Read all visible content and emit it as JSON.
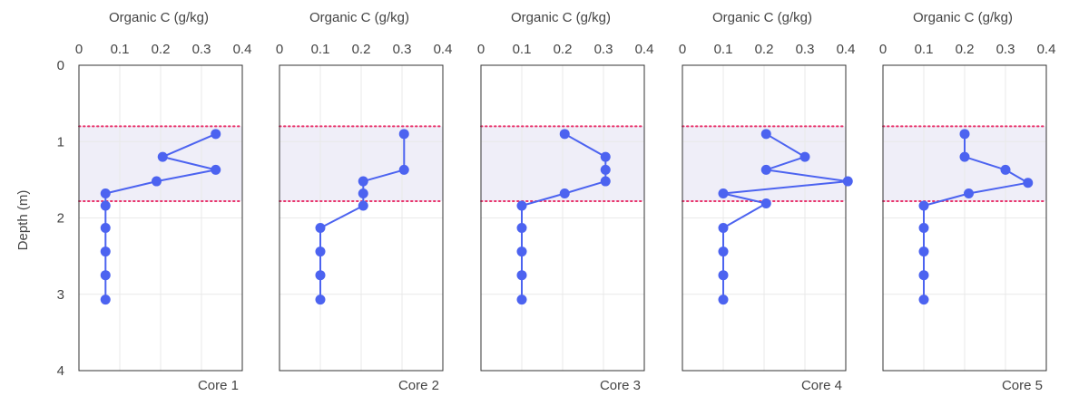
{
  "chart_data": {
    "type": "line",
    "orientation": "profile (x = value, y = depth, depth increases downward)",
    "xlabel": "Organic C (g/kg)",
    "ylabel": "Depth (m)",
    "xlim": [
      0,
      0.4
    ],
    "ylim": [
      0,
      4
    ],
    "x_ticks": [
      "0",
      "0.1",
      "0.2",
      "0.3",
      "0.4"
    ],
    "y_ticks": [
      "0",
      "1",
      "2",
      "3",
      "4"
    ],
    "grid": true,
    "shaded_band": {
      "y_from": 0.8,
      "y_to": 1.78,
      "color": "#efeef8",
      "line_color": "#e8336b",
      "line_style": "dotted"
    },
    "series_color": "#4c63f0",
    "panels": [
      {
        "label": "Core 1",
        "depth": [
          0.9,
          1.2,
          1.37,
          1.52,
          1.68,
          1.84,
          2.13,
          2.44,
          2.75,
          3.07
        ],
        "organic_c": [
          0.335,
          0.205,
          0.335,
          0.19,
          0.065,
          0.065,
          0.065,
          0.065,
          0.065,
          0.065
        ]
      },
      {
        "label": "Core 2",
        "depth": [
          0.9,
          1.37,
          1.52,
          1.68,
          1.84,
          2.13,
          2.44,
          2.75,
          3.07
        ],
        "organic_c": [
          0.305,
          0.305,
          0.205,
          0.205,
          0.205,
          0.1,
          0.1,
          0.1,
          0.1
        ]
      },
      {
        "label": "Core 3",
        "depth": [
          0.9,
          1.2,
          1.37,
          1.52,
          1.68,
          1.84,
          2.13,
          2.44,
          2.75,
          3.07
        ],
        "organic_c": [
          0.205,
          0.305,
          0.305,
          0.305,
          0.205,
          0.1,
          0.1,
          0.1,
          0.1,
          0.1
        ]
      },
      {
        "label": "Core 4",
        "depth": [
          0.9,
          1.2,
          1.37,
          1.52,
          1.68,
          1.81,
          2.13,
          2.44,
          2.75,
          3.07
        ],
        "organic_c": [
          0.205,
          0.3,
          0.205,
          0.405,
          0.1,
          0.205,
          0.1,
          0.1,
          0.1,
          0.1
        ]
      },
      {
        "label": "Core 5",
        "depth": [
          0.9,
          1.2,
          1.37,
          1.54,
          1.68,
          1.84,
          2.13,
          2.44,
          2.75,
          3.07
        ],
        "organic_c": [
          0.2,
          0.2,
          0.3,
          0.355,
          0.21,
          0.1,
          0.1,
          0.1,
          0.1,
          0.1
        ]
      }
    ]
  }
}
